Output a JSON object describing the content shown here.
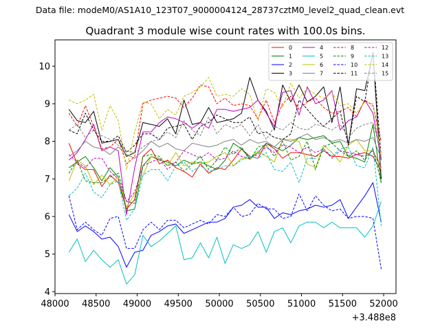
{
  "header": {
    "data_file": "Data file: modeM0/AS1A10_123T07_9000004124_28737cztM0_level2_quad_clean.evt"
  },
  "chart_data": {
    "type": "line",
    "title": "Quadrant 3 module wise count rates with 100.0s bins.",
    "xlabel": "",
    "ylabel": "",
    "x_offset_label": "+3.488e8",
    "xlim": [
      48000,
      52150
    ],
    "ylim": [
      3.95,
      10.7
    ],
    "xticks": [
      48000,
      48500,
      49000,
      49500,
      50000,
      50500,
      51000,
      51500,
      52000
    ],
    "yticks": [
      4,
      5,
      6,
      7,
      8,
      9,
      10
    ],
    "grid": false,
    "legend_position": "top-right",
    "x": [
      48170,
      48270,
      48370,
      48470,
      48570,
      48670,
      48770,
      48870,
      48970,
      49070,
      49170,
      49270,
      49370,
      49470,
      49570,
      49670,
      49770,
      49870,
      49970,
      50070,
      50170,
      50270,
      50370,
      50470,
      50570,
      50670,
      50770,
      50870,
      50970,
      51070,
      51170,
      51270,
      51370,
      51470,
      51570,
      51670,
      51770,
      51870,
      51970
    ],
    "series": [
      {
        "name": "0",
        "color": "#ff0000",
        "dash": false,
        "values": [
          7.95,
          7.4,
          7.25,
          7.25,
          6.8,
          7.1,
          6.9,
          6.2,
          6.45,
          7.6,
          7.8,
          7.4,
          7.5,
          7.3,
          7.2,
          7.05,
          7.4,
          7.15,
          7.3,
          7.25,
          7.5,
          7.8,
          7.6,
          7.55,
          7.95,
          7.8,
          7.55,
          7.7,
          7.7,
          7.65,
          7.6,
          7.75,
          7.6,
          7.6,
          7.55,
          7.65,
          7.7,
          7.6,
          7.2
        ]
      },
      {
        "name": "1",
        "color": "#008000",
        "dash": false,
        "values": [
          7.3,
          7.45,
          7.6,
          7.3,
          6.95,
          7.3,
          7.05,
          6.15,
          6.2,
          7.35,
          7.6,
          7.5,
          7.45,
          7.35,
          7.5,
          7.4,
          7.45,
          7.35,
          7.25,
          7.5,
          7.95,
          7.8,
          7.55,
          7.7,
          7.95,
          7.85,
          7.75,
          7.9,
          8.1,
          8.05,
          8.1,
          8.15,
          7.95,
          8.0,
          7.6,
          7.55,
          7.45,
          8.45,
          6.9
        ]
      },
      {
        "name": "2",
        "color": "#0000ff",
        "dash": false,
        "values": [
          6.05,
          5.6,
          5.75,
          5.6,
          5.4,
          5.45,
          5.2,
          4.65,
          5.05,
          5.1,
          5.5,
          5.6,
          5.75,
          5.8,
          5.55,
          5.65,
          5.75,
          5.85,
          5.85,
          5.95,
          6.25,
          6.3,
          6.45,
          6.25,
          6.25,
          5.95,
          6.1,
          6.05,
          6.15,
          6.2,
          6.3,
          6.25,
          6.3,
          6.45,
          5.95,
          6.25,
          6.55,
          6.9,
          5.85
        ]
      },
      {
        "name": "3",
        "color": "#000000",
        "dash": false,
        "values": [
          8.85,
          8.55,
          8.5,
          8.8,
          7.95,
          8.0,
          8.05,
          7.6,
          7.7,
          8.5,
          8.45,
          8.4,
          8.6,
          8.2,
          9.1,
          8.45,
          8.5,
          8.9,
          8.5,
          8.55,
          8.6,
          8.75,
          9.7,
          9.1,
          8.8,
          8.3,
          9.5,
          9.05,
          9.5,
          9.05,
          9.2,
          9.45,
          8.5,
          9.45,
          7.9,
          9.4,
          9.35,
          10.35,
          7.0
        ]
      },
      {
        "name": "4",
        "color": "#bf00bf",
        "dash": false,
        "values": [
          7.5,
          7.7,
          8.05,
          8.45,
          7.75,
          7.85,
          7.75,
          6.05,
          7.3,
          8.25,
          8.25,
          8.5,
          8.65,
          8.6,
          8.5,
          8.35,
          8.5,
          8.35,
          8.85,
          8.85,
          8.8,
          8.85,
          8.9,
          9.1,
          8.75,
          8.4,
          9.3,
          9.35,
          8.7,
          9.45,
          9.0,
          9.1,
          9.35,
          8.3,
          8.55,
          8.65,
          9.1,
          8.75,
          7.5
        ]
      },
      {
        "name": "5",
        "color": "#00bfbf",
        "dash": false,
        "values": [
          5.05,
          5.4,
          4.8,
          5.1,
          4.85,
          4.65,
          4.85,
          4.2,
          4.45,
          5.5,
          5.2,
          5.35,
          5.55,
          5.75,
          4.85,
          4.9,
          5.3,
          4.9,
          5.45,
          4.75,
          5.25,
          5.15,
          5.25,
          5.6,
          5.05,
          5.6,
          5.7,
          5.3,
          5.75,
          5.85,
          5.85,
          5.7,
          5.85,
          5.7,
          5.7,
          5.7,
          5.45,
          5.75,
          6.4
        ]
      },
      {
        "name": "6",
        "color": "#bfbf00",
        "dash": false,
        "values": [
          6.95,
          7.5,
          7.35,
          6.85,
          7.1,
          6.85,
          7.05,
          6.25,
          6.6,
          7.1,
          7.6,
          7.55,
          7.35,
          7.7,
          7.35,
          7.45,
          7.4,
          7.45,
          7.6,
          7.7,
          7.35,
          7.55,
          7.55,
          7.75,
          7.6,
          7.45,
          8.05,
          8.05,
          8.0,
          7.4,
          7.3,
          7.9,
          7.7,
          7.45,
          7.9,
          8.05,
          7.75,
          7.75,
          7.25
        ]
      },
      {
        "name": "7",
        "color": "#808080",
        "dash": false,
        "values": [
          7.6,
          7.75,
          8.0,
          7.85,
          7.8,
          7.65,
          7.85,
          7.65,
          7.55,
          7.75,
          8.0,
          7.85,
          7.95,
          7.8,
          7.75,
          7.95,
          7.9,
          7.85,
          7.9,
          8.0,
          8.05,
          7.9,
          8.05,
          7.95,
          8.0,
          7.85,
          8.05,
          8.0,
          8.1,
          8.2,
          8.05,
          8.1,
          8.0,
          8.05,
          7.95,
          8.05,
          8.0,
          8.1,
          7.55
        ]
      },
      {
        "name": "8",
        "color": "#ff0000",
        "dash": true,
        "values": [
          8.75,
          8.4,
          8.95,
          8.4,
          7.8,
          7.85,
          8.05,
          7.4,
          7.6,
          9.0,
          9.1,
          9.15,
          9.2,
          9.15,
          8.9,
          9.15,
          9.5,
          9.45,
          9.0,
          9.15,
          8.95,
          9.0,
          8.95,
          8.6,
          9.1,
          8.5,
          9.0,
          9.2,
          8.85,
          9.05,
          9.15,
          8.9,
          8.75,
          8.8,
          8.9,
          8.65,
          9.1,
          8.95,
          8.0
        ]
      },
      {
        "name": "9",
        "color": "#008000",
        "dash": true,
        "values": [
          7.15,
          7.5,
          6.95,
          6.9,
          6.9,
          7.05,
          7.15,
          6.4,
          6.35,
          7.6,
          7.65,
          7.6,
          7.35,
          7.45,
          7.2,
          7.4,
          7.6,
          7.25,
          7.5,
          7.85,
          7.65,
          7.85,
          7.5,
          7.85,
          7.9,
          7.6,
          8.0,
          7.5,
          7.6,
          8.0,
          7.25,
          7.85,
          7.95,
          7.75,
          7.6,
          7.75,
          7.5,
          7.8,
          6.9
        ]
      },
      {
        "name": "10",
        "color": "#0000ff",
        "dash": true,
        "values": [
          6.55,
          5.65,
          5.85,
          5.65,
          5.5,
          5.95,
          6.0,
          5.15,
          5.15,
          5.65,
          5.85,
          5.65,
          5.9,
          5.9,
          5.7,
          5.8,
          5.9,
          5.8,
          6.05,
          6.0,
          6.25,
          6.0,
          6.05,
          6.35,
          6.2,
          6.2,
          5.95,
          6.0,
          6.6,
          6.15,
          6.55,
          6.3,
          6.15,
          6.2,
          5.95,
          6.0,
          6.0,
          5.95,
          4.6
        ]
      },
      {
        "name": "11",
        "color": "#000000",
        "dash": true,
        "values": [
          8.3,
          8.2,
          8.75,
          8.3,
          8.0,
          8.0,
          8.15,
          7.7,
          7.9,
          8.2,
          8.2,
          8.05,
          8.35,
          8.4,
          8.45,
          8.05,
          8.4,
          8.5,
          8.7,
          8.6,
          8.5,
          8.5,
          8.65,
          8.2,
          8.25,
          8.1,
          8.05,
          8.2,
          9.1,
          8.85,
          8.6,
          8.4,
          8.6,
          8.8,
          7.9,
          9.2,
          9.05,
          10.4,
          7.55
        ]
      },
      {
        "name": "12",
        "color": "#bf00bf",
        "dash": true,
        "values": [
          7.65,
          7.45,
          7.3,
          7.55,
          7.55,
          7.2,
          7.0,
          6.4,
          6.65,
          7.35,
          7.45,
          7.55,
          7.25,
          7.45,
          7.75,
          7.65,
          7.55,
          7.7,
          7.5,
          7.55,
          7.75,
          7.6,
          7.55,
          7.65,
          7.85,
          7.7,
          7.9,
          7.85,
          7.7,
          7.85,
          7.7,
          7.8,
          7.55,
          7.75,
          7.7,
          7.65,
          7.6,
          7.75,
          7.3
        ]
      },
      {
        "name": "13",
        "color": "#00bfbf",
        "dash": true,
        "values": [
          6.55,
          6.75,
          7.15,
          6.65,
          6.5,
          6.85,
          6.95,
          5.9,
          6.2,
          7.1,
          7.25,
          7.25,
          6.95,
          7.35,
          7.45,
          7.2,
          7.35,
          7.2,
          7.25,
          7.35,
          7.35,
          7.5,
          7.6,
          7.55,
          7.7,
          7.25,
          7.2,
          7.45,
          6.9,
          7.55,
          7.55,
          7.8,
          7.6,
          7.8,
          7.85,
          7.35,
          7.3,
          7.85,
          5.75
        ]
      },
      {
        "name": "14",
        "color": "#bfbf00",
        "dash": true,
        "values": [
          9.1,
          9.0,
          9.1,
          9.25,
          8.3,
          8.95,
          8.55,
          7.25,
          8.25,
          9.05,
          9.0,
          8.6,
          8.85,
          8.7,
          9.2,
          9.3,
          9.45,
          9.7,
          9.2,
          9.25,
          9.2,
          9.4,
          9.25,
          8.55,
          9.4,
          9.3,
          8.9,
          9.55,
          9.15,
          9.4,
          9.25,
          9.15,
          9.3,
          8.95,
          9.0,
          8.75,
          9.05,
          9.0,
          7.6
        ]
      },
      {
        "name": "15",
        "color": "#808080",
        "dash": true,
        "values": [
          8.3,
          8.45,
          8.1,
          8.3,
          8.15,
          8.05,
          7.9,
          7.75,
          7.7,
          7.85,
          8.0,
          8.05,
          8.25,
          8.1,
          8.55,
          8.3,
          8.15,
          8.65,
          8.2,
          8.45,
          8.35,
          8.45,
          8.15,
          8.45,
          8.05,
          8.4,
          8.3,
          8.5,
          8.35,
          8.3,
          8.45,
          8.4,
          8.3,
          8.45,
          8.1,
          8.35,
          8.45,
          8.5,
          7.7
        ]
      }
    ]
  }
}
